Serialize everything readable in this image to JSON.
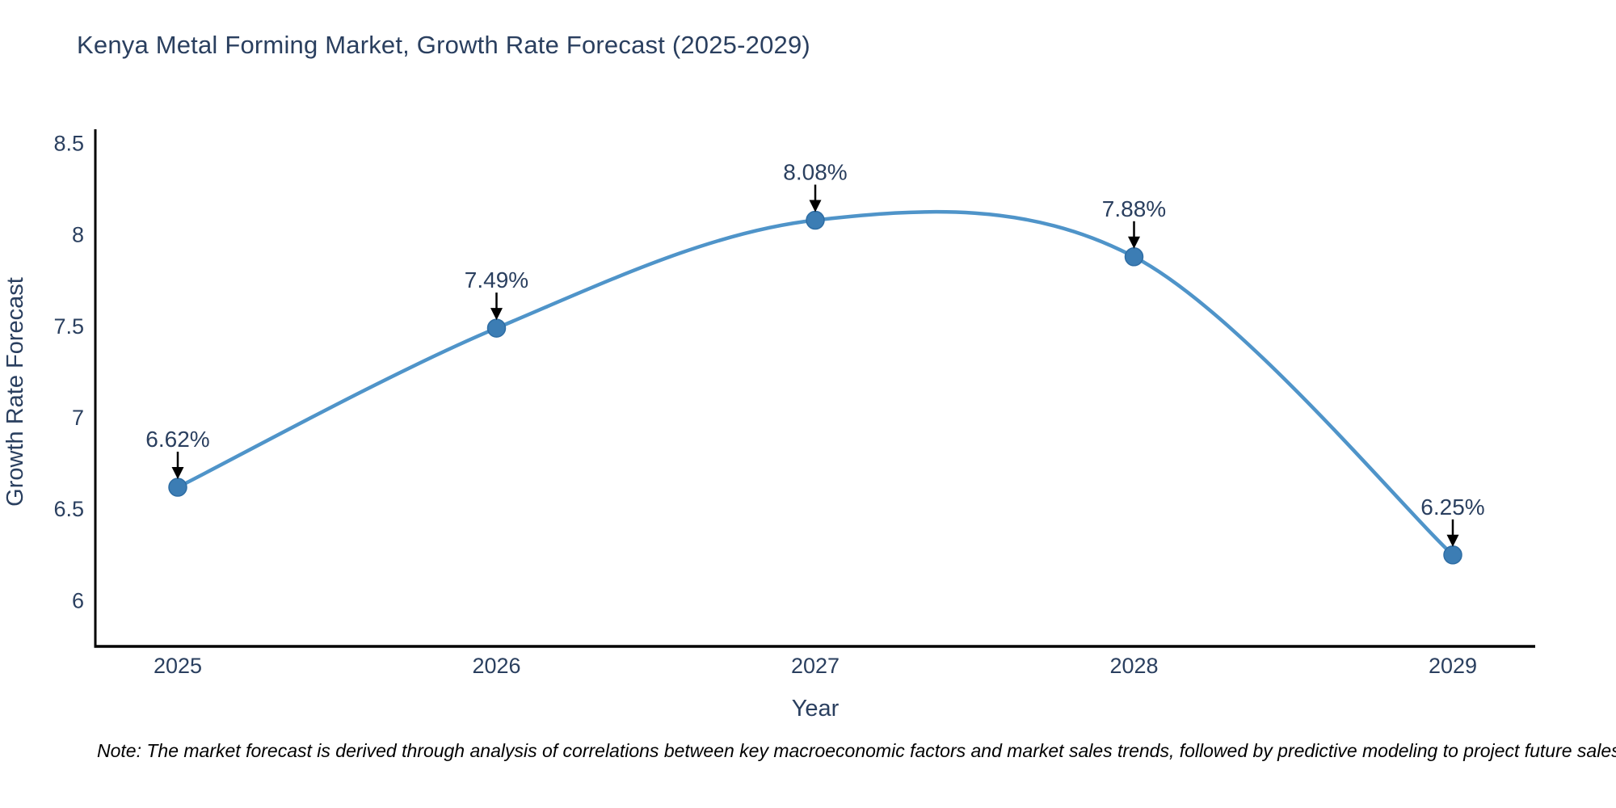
{
  "title": "Kenya Metal Forming Market, Growth Rate Forecast (2025-2029)",
  "footnote": "Note: The market forecast is derived through analysis of correlations between key macroeconomic factors and market sales trends, followed by predictive modeling to project future sales",
  "chart_data": {
    "type": "line",
    "x": [
      2025,
      2026,
      2027,
      2028,
      2029
    ],
    "xticks": [
      "2025",
      "2026",
      "2027",
      "2028",
      "2029"
    ],
    "series": [
      {
        "name": "Growth Rate Forecast",
        "values": [
          6.62,
          7.49,
          8.08,
          7.88,
          6.25
        ]
      }
    ],
    "point_labels": [
      "6.62%",
      "7.49%",
      "8.08%",
      "7.88%",
      "6.25%"
    ],
    "title": "Kenya Metal Forming Market, Growth Rate Forecast (2025-2029)",
    "xlabel": "Year",
    "ylabel": "Growth Rate Forecast",
    "ylim": [
      5.75,
      8.577
    ],
    "yticks": [
      6,
      6.5,
      7,
      7.5,
      8,
      8.5
    ],
    "line_shape": "spline",
    "grid": false,
    "legend": "none",
    "colors": {
      "line": "#4f94c9",
      "marker": "#3c7db4",
      "marker_edge": "#2e6da4",
      "axis": "#000000",
      "text": "#2a3f5f",
      "annotation_arrow": "#000000",
      "note_text": "#000000",
      "background": "#ffffff"
    }
  }
}
